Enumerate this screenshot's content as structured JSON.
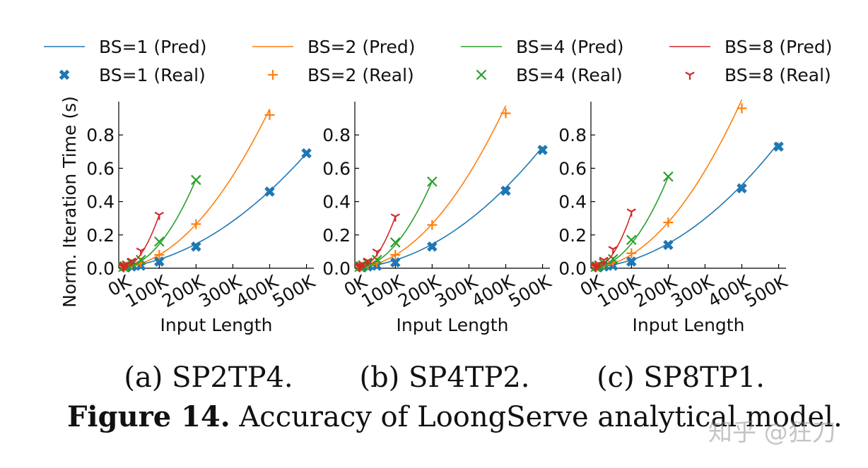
{
  "legend": [
    {
      "label": "BS=1 (Pred)",
      "kind": "line",
      "series": 0
    },
    {
      "label": "BS=2 (Pred)",
      "kind": "line",
      "series": 1
    },
    {
      "label": "BS=4 (Pred)",
      "kind": "line",
      "series": 2
    },
    {
      "label": "BS=8 (Pred)",
      "kind": "line",
      "series": 3
    },
    {
      "label": "BS=1 (Real)",
      "kind": "marker",
      "series": 0
    },
    {
      "label": "BS=2 (Real)",
      "kind": "marker",
      "series": 1
    },
    {
      "label": "BS=4 (Real)",
      "kind": "marker",
      "series": 2
    },
    {
      "label": "BS=8 (Real)",
      "kind": "marker",
      "series": 3
    }
  ],
  "series_style": [
    {
      "color": "#1f77b4",
      "marker": "X"
    },
    {
      "color": "#ff7f0e",
      "marker": "+"
    },
    {
      "color": "#2ca02c",
      "marker": "x"
    },
    {
      "color": "#d62728",
      "marker": "tri"
    }
  ],
  "chart_data": [
    {
      "type": "scatter",
      "title": "",
      "caption": "(a) SP2TP4.",
      "xlabel": "Input Length",
      "ylabel": "Norm. Iteration Time (s)",
      "xlim": [
        -10,
        520
      ],
      "ylim": [
        0,
        1.0
      ],
      "xticks": [
        0,
        100,
        200,
        300,
        400,
        500
      ],
      "xtick_labels": [
        "0K",
        "100K",
        "200K",
        "300K",
        "400K",
        "500K"
      ],
      "yticks": [
        0.0,
        0.2,
        0.4,
        0.6,
        0.8
      ],
      "ytick_labels": [
        "0.0",
        "0.2",
        "0.4",
        "0.6",
        "0.8"
      ],
      "grid": false,
      "series": [
        {
          "name": "BS=1",
          "x": [
            10,
            25,
            50,
            100,
            200,
            400,
            500
          ],
          "y": [
            0.005,
            0.01,
            0.015,
            0.04,
            0.13,
            0.46,
            0.69
          ],
          "pred_coef": [
            2.2e-06,
            0.00027
          ]
        },
        {
          "name": "BS=2",
          "x": [
            5,
            12.5,
            25,
            50,
            100,
            200,
            400
          ],
          "y": [
            0.007,
            0.01,
            0.02,
            0.035,
            0.08,
            0.265,
            0.92
          ],
          "pred_coef": [
            5.4e-06,
            0.00022
          ]
        },
        {
          "name": "BS=4",
          "x": [
            2.5,
            6.25,
            12.5,
            25,
            50,
            100,
            200
          ],
          "y": [
            0.008,
            0.012,
            0.018,
            0.03,
            0.05,
            0.16,
            0.53
          ],
          "pred_coef": [
            1.25e-05,
            0.00015
          ]
        },
        {
          "name": "BS=8",
          "x": [
            1.25,
            3.125,
            6.25,
            12.5,
            25,
            50,
            100
          ],
          "y": [
            0.009,
            0.012,
            0.018,
            0.025,
            0.045,
            0.105,
            0.32
          ],
          "pred_coef": [
            3.1e-05,
            6e-05
          ]
        }
      ]
    },
    {
      "type": "scatter",
      "title": "",
      "caption": "(b) SP4TP2.",
      "xlabel": "Input Length",
      "ylabel": "",
      "xlim": [
        -10,
        520
      ],
      "ylim": [
        0,
        1.0
      ],
      "xticks": [
        0,
        100,
        200,
        300,
        400,
        500
      ],
      "xtick_labels": [
        "0K",
        "100K",
        "200K",
        "300K",
        "400K",
        "500K"
      ],
      "yticks": [
        0.0,
        0.2,
        0.4,
        0.6,
        0.8
      ],
      "ytick_labels": [
        "0.0",
        "0.2",
        "0.4",
        "0.6",
        "0.8"
      ],
      "grid": false,
      "series": [
        {
          "name": "BS=1",
          "x": [
            10,
            25,
            50,
            100,
            200,
            400,
            500
          ],
          "y": [
            0.005,
            0.01,
            0.015,
            0.035,
            0.13,
            0.465,
            0.71
          ],
          "pred_coef": [
            2.5e-06,
            0.0002
          ]
        },
        {
          "name": "BS=2",
          "x": [
            5,
            12.5,
            25,
            50,
            100,
            200,
            400
          ],
          "y": [
            0.007,
            0.01,
            0.02,
            0.035,
            0.08,
            0.26,
            0.93
          ],
          "pred_coef": [
            5.6e-06,
            0.00019
          ]
        },
        {
          "name": "BS=4",
          "x": [
            2.5,
            6.25,
            12.5,
            25,
            50,
            100,
            200
          ],
          "y": [
            0.008,
            0.012,
            0.018,
            0.03,
            0.05,
            0.155,
            0.52
          ],
          "pred_coef": [
            1.22e-05,
            0.00015
          ]
        },
        {
          "name": "BS=8",
          "x": [
            1.25,
            3.125,
            6.25,
            12.5,
            25,
            50,
            100
          ],
          "y": [
            0.009,
            0.012,
            0.018,
            0.025,
            0.045,
            0.1,
            0.31
          ],
          "pred_coef": [
            3e-05,
            6e-05
          ]
        }
      ]
    },
    {
      "type": "scatter",
      "title": "",
      "caption": "(c) SP8TP1.",
      "xlabel": "Input Length",
      "ylabel": "",
      "xlim": [
        -10,
        520
      ],
      "ylim": [
        0,
        1.0
      ],
      "xticks": [
        0,
        100,
        200,
        300,
        400,
        500
      ],
      "xtick_labels": [
        "0K",
        "100K",
        "200K",
        "300K",
        "400K",
        "500K"
      ],
      "yticks": [
        0.0,
        0.2,
        0.4,
        0.6,
        0.8
      ],
      "ytick_labels": [
        "0.0",
        "0.2",
        "0.4",
        "0.6",
        "0.8"
      ],
      "grid": false,
      "series": [
        {
          "name": "BS=1",
          "x": [
            10,
            25,
            50,
            100,
            200,
            400,
            500
          ],
          "y": [
            0.005,
            0.01,
            0.015,
            0.04,
            0.14,
            0.48,
            0.73
          ],
          "pred_coef": [
            2.6e-06,
            0.0002
          ]
        },
        {
          "name": "BS=2",
          "x": [
            5,
            12.5,
            25,
            50,
            100,
            200,
            400
          ],
          "y": [
            0.007,
            0.01,
            0.02,
            0.04,
            0.09,
            0.275,
            0.96
          ],
          "pred_coef": [
            5.8e-06,
            0.0002
          ]
        },
        {
          "name": "BS=4",
          "x": [
            2.5,
            6.25,
            12.5,
            25,
            50,
            100,
            200
          ],
          "y": [
            0.008,
            0.012,
            0.018,
            0.03,
            0.055,
            0.17,
            0.55
          ],
          "pred_coef": [
            1.28e-05,
            0.00016
          ]
        },
        {
          "name": "BS=8",
          "x": [
            1.25,
            3.125,
            6.25,
            12.5,
            25,
            50,
            100
          ],
          "y": [
            0.009,
            0.012,
            0.018,
            0.025,
            0.05,
            0.115,
            0.34
          ],
          "pred_coef": [
            3.2e-05,
            7e-05
          ]
        }
      ]
    }
  ],
  "figure_caption": {
    "label": "Figure 14.",
    "text": " Accuracy of LoongServe analytical model."
  },
  "watermark": "知乎 @狂刀"
}
